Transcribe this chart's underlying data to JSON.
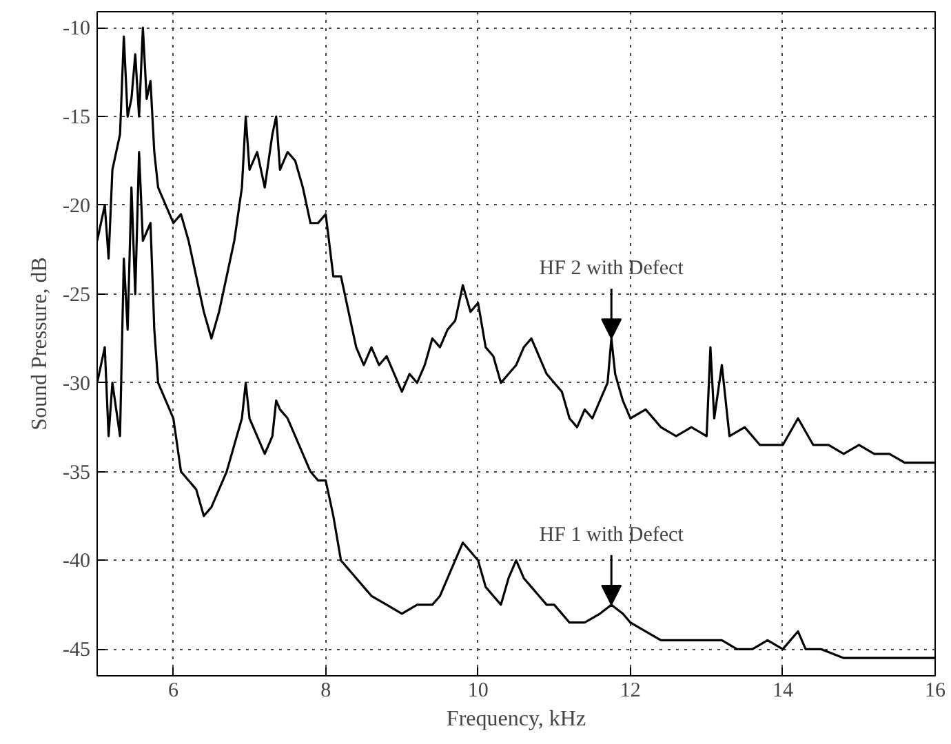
{
  "chart_data": {
    "type": "line",
    "xlabel": "Frequency, kHz",
    "ylabel": "Sound Pressure, dB",
    "xlim": [
      5,
      16
    ],
    "xticks": [
      6,
      8,
      10,
      12,
      14,
      16
    ],
    "ylim": [
      -46.5,
      -9.1
    ],
    "yticks": [
      -45,
      -40,
      -35,
      -30,
      -25,
      -20,
      -15,
      -10
    ],
    "grid": true,
    "line_style": "solid",
    "marker": "none",
    "series": [
      {
        "color": "#000000",
        "x": [
          5.0,
          5.1,
          5.15,
          5.2,
          5.3,
          5.35,
          5.4,
          5.45,
          5.5,
          5.55,
          5.6,
          5.65,
          5.7,
          5.75,
          5.8,
          5.9,
          6.0,
          6.1,
          6.2,
          6.3,
          6.4,
          6.5,
          6.6,
          6.7,
          6.8,
          6.9,
          6.95,
          7.0,
          7.1,
          7.2,
          7.3,
          7.35,
          7.4,
          7.5,
          7.6,
          7.7,
          7.8,
          7.9,
          8.0,
          8.1,
          8.2,
          8.3,
          8.4,
          8.5,
          8.6,
          8.7,
          8.8,
          8.9,
          9.0,
          9.1,
          9.2,
          9.3,
          9.4,
          9.5,
          9.6,
          9.7,
          9.8,
          9.9,
          10.0,
          10.1,
          10.2,
          10.3,
          10.4,
          10.5,
          10.6,
          10.7,
          10.8,
          10.9,
          11.0,
          11.1,
          11.2,
          11.3,
          11.4,
          11.5,
          11.6,
          11.7,
          11.75,
          11.8,
          11.9,
          12.0,
          12.2,
          12.4,
          12.6,
          12.8,
          13.0,
          13.05,
          13.1,
          13.2,
          13.3,
          13.5,
          13.7,
          14.0,
          14.2,
          14.4,
          14.6,
          14.8,
          15.0,
          15.2,
          15.4,
          15.6,
          15.8,
          16.0
        ],
        "values": [
          -22,
          -20,
          -23,
          -18,
          -16,
          -10.5,
          -15,
          -14,
          -11.5,
          -15,
          -10,
          -14,
          -13,
          -17,
          -19,
          -20,
          -21,
          -20.5,
          -22,
          -24,
          -26,
          -27.5,
          -26,
          -24,
          -22,
          -19,
          -15,
          -18,
          -17,
          -19,
          -16,
          -15,
          -18,
          -17,
          -17.5,
          -19,
          -21,
          -21,
          -20.5,
          -24,
          -24,
          -26,
          -28,
          -29,
          -28,
          -29,
          -28.5,
          -29.5,
          -30.5,
          -29.5,
          -30,
          -29,
          -27.5,
          -28,
          -27,
          -26.5,
          -24.5,
          -26,
          -25.5,
          -28,
          -28.5,
          -30,
          -29.5,
          -29,
          -28,
          -27.5,
          -28.5,
          -29.5,
          -30,
          -30.5,
          -32,
          -32.5,
          -31.5,
          -32,
          -31,
          -30,
          -27.5,
          -29.5,
          -31,
          -32,
          -31.5,
          -32.5,
          -33,
          -32.5,
          -33,
          -28,
          -32,
          -29,
          -33,
          -32.5,
          -33.5,
          -33.5,
          -32,
          -33.5,
          -33.5,
          -34,
          -33.5,
          -34,
          -34,
          -34.5,
          -34.5,
          -34.5
        ]
      },
      {
        "color": "#000000",
        "x": [
          5.0,
          5.1,
          5.15,
          5.2,
          5.3,
          5.35,
          5.4,
          5.45,
          5.5,
          5.55,
          5.6,
          5.7,
          5.75,
          5.8,
          5.9,
          6.0,
          6.1,
          6.2,
          6.3,
          6.4,
          6.5,
          6.6,
          6.7,
          6.8,
          6.9,
          6.95,
          7.0,
          7.1,
          7.2,
          7.3,
          7.35,
          7.4,
          7.5,
          7.6,
          7.7,
          7.8,
          7.9,
          8.0,
          8.1,
          8.2,
          8.3,
          8.4,
          8.5,
          8.6,
          8.8,
          9.0,
          9.2,
          9.4,
          9.5,
          9.6,
          9.7,
          9.8,
          9.9,
          10.0,
          10.1,
          10.2,
          10.3,
          10.4,
          10.5,
          10.6,
          10.7,
          10.8,
          10.9,
          11.0,
          11.2,
          11.4,
          11.6,
          11.75,
          11.9,
          12.0,
          12.2,
          12.4,
          12.6,
          12.8,
          13.0,
          13.2,
          13.4,
          13.6,
          13.8,
          14.0,
          14.2,
          14.3,
          14.5,
          14.8,
          15.0,
          15.2,
          15.5,
          15.8,
          16.0
        ],
        "values": [
          -30,
          -28,
          -33,
          -30,
          -33,
          -23,
          -27,
          -19,
          -25,
          -17,
          -22,
          -21,
          -27,
          -30,
          -31,
          -32,
          -35,
          -35.5,
          -36,
          -37.5,
          -37,
          -36,
          -35,
          -33.5,
          -32,
          -30,
          -32,
          -33,
          -34,
          -33,
          -31,
          -31.5,
          -32,
          -33,
          -34,
          -35,
          -35.5,
          -35.5,
          -37.5,
          -40,
          -40.5,
          -41,
          -41.5,
          -42,
          -42.5,
          -43,
          -42.5,
          -42.5,
          -42,
          -41,
          -40,
          -39,
          -39.5,
          -40,
          -41.5,
          -42,
          -42.5,
          -41,
          -40,
          -41,
          -41.5,
          -42,
          -42.5,
          -42.5,
          -43.5,
          -43.5,
          -43,
          -42.5,
          -43,
          -43.5,
          -44,
          -44.5,
          -44.5,
          -44.5,
          -44.5,
          -44.5,
          -45,
          -45,
          -44.5,
          -45,
          -44,
          -45,
          -45,
          -45.5,
          -45.5,
          -45.5,
          -45.5,
          -45.5,
          -45.5
        ]
      }
    ],
    "annotations": [
      {
        "text": "HF 2 with Defect",
        "x": 11.75,
        "y": -27.5
      },
      {
        "text": "HF 1 with Defect",
        "x": 11.75,
        "y": -42.5
      }
    ]
  }
}
